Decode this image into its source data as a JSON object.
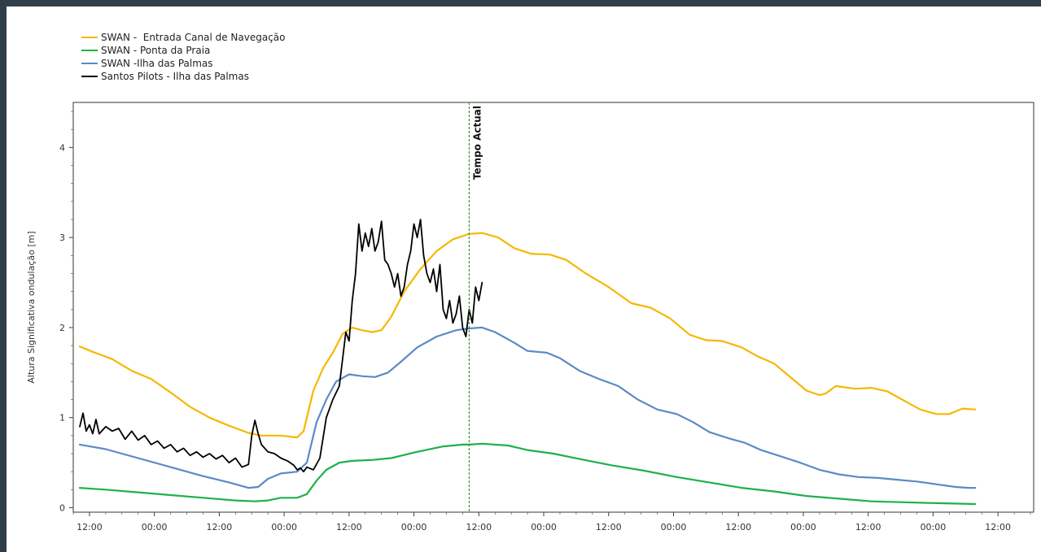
{
  "chart_data": {
    "type": "line",
    "title": "",
    "xlabel": "",
    "ylabel": "Altura Significativa ondulação [m]",
    "x_domain": [
      0,
      14.8
    ],
    "ylim": [
      -0.05,
      4.5
    ],
    "y_ticks": [
      0,
      1,
      2,
      3,
      4
    ],
    "x_ticks": [
      {
        "x": 0.25,
        "label": "12:00"
      },
      {
        "x": 1.25,
        "label": "00:00"
      },
      {
        "x": 2.25,
        "label": "12:00"
      },
      {
        "x": 3.25,
        "label": "00:00"
      },
      {
        "x": 4.25,
        "label": "12:00"
      },
      {
        "x": 5.25,
        "label": "00:00"
      },
      {
        "x": 6.25,
        "label": "12:00"
      },
      {
        "x": 7.25,
        "label": "00:00"
      },
      {
        "x": 8.25,
        "label": "12:00"
      },
      {
        "x": 9.25,
        "label": "00:00"
      },
      {
        "x": 10.25,
        "label": "12:00"
      },
      {
        "x": 11.25,
        "label": "00:00"
      },
      {
        "x": 12.25,
        "label": "12:00"
      },
      {
        "x": 13.25,
        "label": "00:00"
      },
      {
        "x": 14.25,
        "label": "12:00"
      }
    ],
    "marker": {
      "x": 6.1,
      "label": "Tempo Actual",
      "color": "#1a7f1a"
    },
    "legend_position": "top-left",
    "grid": false,
    "series": [
      {
        "name": "SWAN -  Entrada Canal de Navegação",
        "color": "#f5b800",
        "points": [
          [
            0.1,
            1.79
          ],
          [
            0.3,
            1.73
          ],
          [
            0.6,
            1.65
          ],
          [
            0.9,
            1.52
          ],
          [
            1.2,
            1.43
          ],
          [
            1.5,
            1.28
          ],
          [
            1.8,
            1.12
          ],
          [
            2.1,
            1.0
          ],
          [
            2.4,
            0.91
          ],
          [
            2.7,
            0.83
          ],
          [
            2.9,
            0.8
          ],
          [
            3.2,
            0.8
          ],
          [
            3.45,
            0.78
          ],
          [
            3.55,
            0.85
          ],
          [
            3.7,
            1.3
          ],
          [
            3.85,
            1.55
          ],
          [
            4.0,
            1.72
          ],
          [
            4.15,
            1.93
          ],
          [
            4.3,
            2.0
          ],
          [
            4.45,
            1.97
          ],
          [
            4.6,
            1.95
          ],
          [
            4.75,
            1.97
          ],
          [
            4.9,
            2.12
          ],
          [
            5.1,
            2.4
          ],
          [
            5.35,
            2.65
          ],
          [
            5.6,
            2.85
          ],
          [
            5.85,
            2.98
          ],
          [
            6.1,
            3.04
          ],
          [
            6.3,
            3.05
          ],
          [
            6.55,
            3.0
          ],
          [
            6.8,
            2.88
          ],
          [
            7.05,
            2.82
          ],
          [
            7.35,
            2.81
          ],
          [
            7.6,
            2.75
          ],
          [
            7.9,
            2.6
          ],
          [
            8.25,
            2.45
          ],
          [
            8.6,
            2.27
          ],
          [
            8.9,
            2.22
          ],
          [
            9.2,
            2.1
          ],
          [
            9.5,
            1.92
          ],
          [
            9.75,
            1.86
          ],
          [
            10.0,
            1.85
          ],
          [
            10.3,
            1.78
          ],
          [
            10.55,
            1.68
          ],
          [
            10.8,
            1.6
          ],
          [
            11.0,
            1.48
          ],
          [
            11.3,
            1.3
          ],
          [
            11.5,
            1.25
          ],
          [
            11.6,
            1.27
          ],
          [
            11.75,
            1.35
          ],
          [
            12.05,
            1.32
          ],
          [
            12.3,
            1.33
          ],
          [
            12.55,
            1.29
          ],
          [
            12.8,
            1.19
          ],
          [
            13.05,
            1.09
          ],
          [
            13.3,
            1.04
          ],
          [
            13.5,
            1.04
          ],
          [
            13.7,
            1.1
          ],
          [
            13.9,
            1.09
          ]
        ]
      },
      {
        "name": "SWAN - Ponta da Praia",
        "color": "#1fb04a",
        "points": [
          [
            0.1,
            0.22
          ],
          [
            0.5,
            0.2
          ],
          [
            1.0,
            0.17
          ],
          [
            1.5,
            0.14
          ],
          [
            2.0,
            0.11
          ],
          [
            2.5,
            0.08
          ],
          [
            2.8,
            0.07
          ],
          [
            3.0,
            0.08
          ],
          [
            3.2,
            0.11
          ],
          [
            3.45,
            0.11
          ],
          [
            3.6,
            0.15
          ],
          [
            3.75,
            0.3
          ],
          [
            3.9,
            0.42
          ],
          [
            4.1,
            0.5
          ],
          [
            4.3,
            0.52
          ],
          [
            4.6,
            0.53
          ],
          [
            4.9,
            0.55
          ],
          [
            5.3,
            0.62
          ],
          [
            5.7,
            0.68
          ],
          [
            6.0,
            0.7
          ],
          [
            6.1,
            0.7
          ],
          [
            6.3,
            0.71
          ],
          [
            6.7,
            0.69
          ],
          [
            7.0,
            0.64
          ],
          [
            7.4,
            0.6
          ],
          [
            7.8,
            0.54
          ],
          [
            8.3,
            0.47
          ],
          [
            8.8,
            0.41
          ],
          [
            9.3,
            0.34
          ],
          [
            9.8,
            0.28
          ],
          [
            10.3,
            0.22
          ],
          [
            10.8,
            0.18
          ],
          [
            11.3,
            0.13
          ],
          [
            11.8,
            0.1
          ],
          [
            12.3,
            0.07
          ],
          [
            12.8,
            0.06
          ],
          [
            13.3,
            0.05
          ],
          [
            13.9,
            0.04
          ]
        ]
      },
      {
        "name": "SWAN -Ilha das Palmas",
        "color": "#5b8ac6",
        "points": [
          [
            0.1,
            0.7
          ],
          [
            0.5,
            0.65
          ],
          [
            1.0,
            0.55
          ],
          [
            1.5,
            0.45
          ],
          [
            2.0,
            0.35
          ],
          [
            2.4,
            0.28
          ],
          [
            2.7,
            0.22
          ],
          [
            2.85,
            0.23
          ],
          [
            3.0,
            0.32
          ],
          [
            3.2,
            0.38
          ],
          [
            3.45,
            0.4
          ],
          [
            3.6,
            0.5
          ],
          [
            3.75,
            0.95
          ],
          [
            3.9,
            1.2
          ],
          [
            4.05,
            1.4
          ],
          [
            4.25,
            1.48
          ],
          [
            4.45,
            1.46
          ],
          [
            4.65,
            1.45
          ],
          [
            4.85,
            1.5
          ],
          [
            5.05,
            1.62
          ],
          [
            5.3,
            1.78
          ],
          [
            5.6,
            1.9
          ],
          [
            5.9,
            1.97
          ],
          [
            6.1,
            1.99
          ],
          [
            6.3,
            2.0
          ],
          [
            6.5,
            1.95
          ],
          [
            6.8,
            1.83
          ],
          [
            7.0,
            1.74
          ],
          [
            7.3,
            1.72
          ],
          [
            7.5,
            1.66
          ],
          [
            7.8,
            1.52
          ],
          [
            8.1,
            1.43
          ],
          [
            8.4,
            1.35
          ],
          [
            8.7,
            1.2
          ],
          [
            9.0,
            1.09
          ],
          [
            9.3,
            1.04
          ],
          [
            9.55,
            0.95
          ],
          [
            9.8,
            0.84
          ],
          [
            10.1,
            0.77
          ],
          [
            10.35,
            0.72
          ],
          [
            10.6,
            0.64
          ],
          [
            10.9,
            0.57
          ],
          [
            11.2,
            0.5
          ],
          [
            11.5,
            0.42
          ],
          [
            11.8,
            0.37
          ],
          [
            12.1,
            0.34
          ],
          [
            12.4,
            0.33
          ],
          [
            12.7,
            0.31
          ],
          [
            13.0,
            0.29
          ],
          [
            13.3,
            0.26
          ],
          [
            13.6,
            0.23
          ],
          [
            13.8,
            0.22
          ],
          [
            13.9,
            0.22
          ]
        ]
      },
      {
        "name": "Santos Pilots - Ilha das Palmas",
        "color": "#000000",
        "points": [
          [
            0.1,
            0.9
          ],
          [
            0.15,
            1.05
          ],
          [
            0.2,
            0.85
          ],
          [
            0.25,
            0.92
          ],
          [
            0.3,
            0.82
          ],
          [
            0.35,
            0.98
          ],
          [
            0.4,
            0.82
          ],
          [
            0.5,
            0.9
          ],
          [
            0.6,
            0.85
          ],
          [
            0.7,
            0.88
          ],
          [
            0.8,
            0.76
          ],
          [
            0.9,
            0.85
          ],
          [
            1.0,
            0.75
          ],
          [
            1.1,
            0.8
          ],
          [
            1.2,
            0.7
          ],
          [
            1.3,
            0.74
          ],
          [
            1.4,
            0.66
          ],
          [
            1.5,
            0.7
          ],
          [
            1.6,
            0.62
          ],
          [
            1.7,
            0.66
          ],
          [
            1.8,
            0.58
          ],
          [
            1.9,
            0.62
          ],
          [
            2.0,
            0.56
          ],
          [
            2.1,
            0.6
          ],
          [
            2.2,
            0.54
          ],
          [
            2.3,
            0.58
          ],
          [
            2.4,
            0.5
          ],
          [
            2.5,
            0.55
          ],
          [
            2.6,
            0.45
          ],
          [
            2.7,
            0.48
          ],
          [
            2.75,
            0.8
          ],
          [
            2.8,
            0.97
          ],
          [
            2.85,
            0.82
          ],
          [
            2.9,
            0.7
          ],
          [
            3.0,
            0.62
          ],
          [
            3.1,
            0.6
          ],
          [
            3.2,
            0.55
          ],
          [
            3.3,
            0.52
          ],
          [
            3.4,
            0.47
          ],
          [
            3.45,
            0.42
          ],
          [
            3.5,
            0.44
          ],
          [
            3.55,
            0.4
          ],
          [
            3.6,
            0.45
          ],
          [
            3.7,
            0.42
          ],
          [
            3.8,
            0.55
          ],
          [
            3.9,
            1.0
          ],
          [
            4.0,
            1.2
          ],
          [
            4.1,
            1.35
          ],
          [
            4.15,
            1.65
          ],
          [
            4.2,
            1.95
          ],
          [
            4.25,
            1.85
          ],
          [
            4.3,
            2.3
          ],
          [
            4.35,
            2.6
          ],
          [
            4.4,
            3.15
          ],
          [
            4.45,
            2.85
          ],
          [
            4.5,
            3.05
          ],
          [
            4.55,
            2.9
          ],
          [
            4.6,
            3.1
          ],
          [
            4.65,
            2.85
          ],
          [
            4.7,
            2.95
          ],
          [
            4.75,
            3.18
          ],
          [
            4.8,
            2.75
          ],
          [
            4.85,
            2.7
          ],
          [
            4.9,
            2.6
          ],
          [
            4.95,
            2.45
          ],
          [
            5.0,
            2.6
          ],
          [
            5.05,
            2.35
          ],
          [
            5.1,
            2.45
          ],
          [
            5.15,
            2.7
          ],
          [
            5.2,
            2.85
          ],
          [
            5.25,
            3.15
          ],
          [
            5.3,
            3.0
          ],
          [
            5.35,
            3.2
          ],
          [
            5.4,
            2.8
          ],
          [
            5.45,
            2.6
          ],
          [
            5.5,
            2.5
          ],
          [
            5.55,
            2.65
          ],
          [
            5.6,
            2.4
          ],
          [
            5.65,
            2.7
          ],
          [
            5.7,
            2.2
          ],
          [
            5.75,
            2.1
          ],
          [
            5.8,
            2.3
          ],
          [
            5.85,
            2.05
          ],
          [
            5.9,
            2.15
          ],
          [
            5.95,
            2.35
          ],
          [
            6.0,
            2.0
          ],
          [
            6.05,
            1.9
          ],
          [
            6.1,
            2.2
          ],
          [
            6.15,
            2.05
          ],
          [
            6.2,
            2.45
          ],
          [
            6.25,
            2.3
          ],
          [
            6.3,
            2.5
          ]
        ]
      }
    ]
  }
}
